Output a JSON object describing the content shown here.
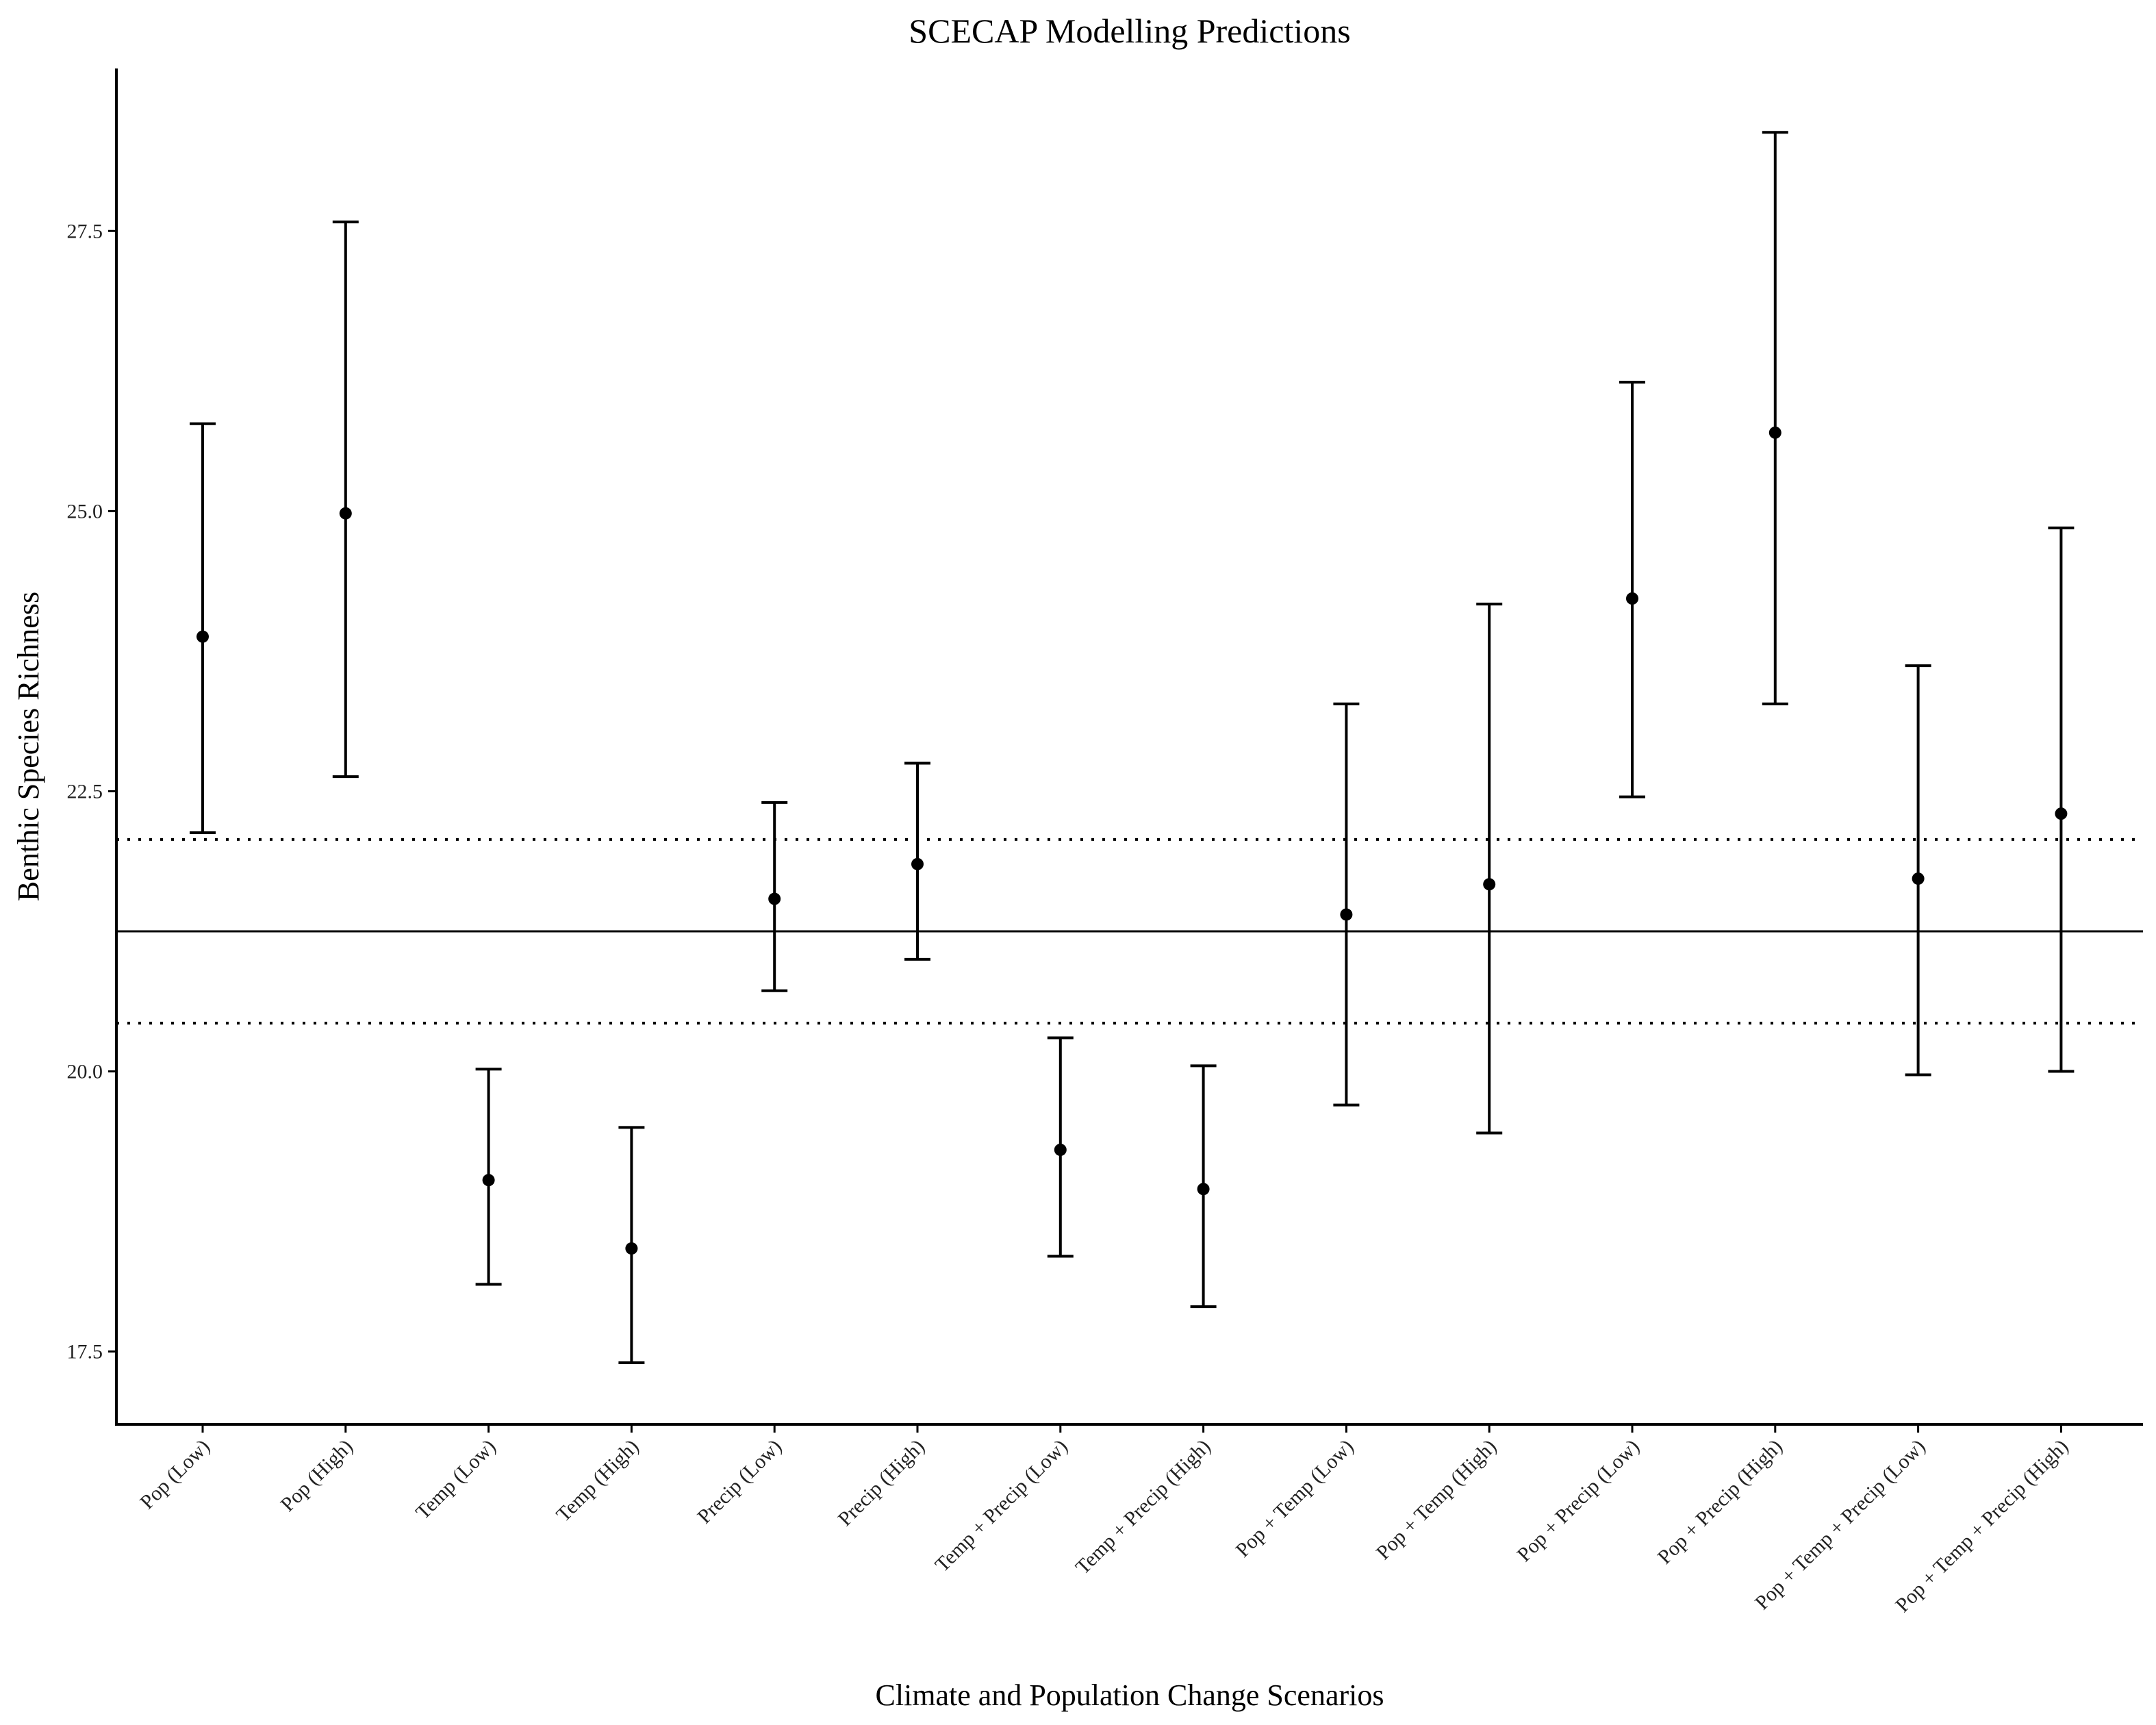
{
  "chart_data": {
    "type": "errorbar",
    "title": "SCECAP Modelling Predictions",
    "xlabel": "Climate and Population Change Scenarios",
    "ylabel": "Benthic Species Richness",
    "ylim": [
      16.85,
      28.95
    ],
    "yticks": [
      17.5,
      20.0,
      22.5,
      25.0,
      27.5
    ],
    "ytick_labels": [
      "17.5",
      "20.0",
      "22.5",
      "25.0",
      "27.5"
    ],
    "categories": [
      "Pop (Low)",
      "Pop (High)",
      "Temp (Low)",
      "Temp (High)",
      "Precip (Low)",
      "Precip (High)",
      "Temp + Precip (Low)",
      "Temp + Precip (High)",
      "Pop + Temp (Low)",
      "Pop + Temp (High)",
      "Pop + Precip (Low)",
      "Pop + Precip (High)",
      "Pop + Temp + Precip (Low)",
      "Pop + Temp + Precip (High)"
    ],
    "values": [
      23.88,
      24.98,
      19.03,
      18.42,
      21.54,
      21.85,
      19.3,
      18.95,
      21.4,
      21.67,
      24.22,
      25.7,
      21.72,
      22.3
    ],
    "lower": [
      22.13,
      22.63,
      18.1,
      17.4,
      20.72,
      21.0,
      18.35,
      17.9,
      19.7,
      19.45,
      22.45,
      23.28,
      19.97,
      20.0
    ],
    "upper": [
      25.78,
      27.58,
      20.02,
      19.5,
      22.4,
      22.75,
      20.3,
      20.05,
      23.28,
      24.17,
      26.15,
      28.38,
      23.62,
      24.85
    ],
    "reference_line": 21.25,
    "reference_band": [
      20.43,
      22.07
    ],
    "grid": false,
    "legend": "none"
  }
}
